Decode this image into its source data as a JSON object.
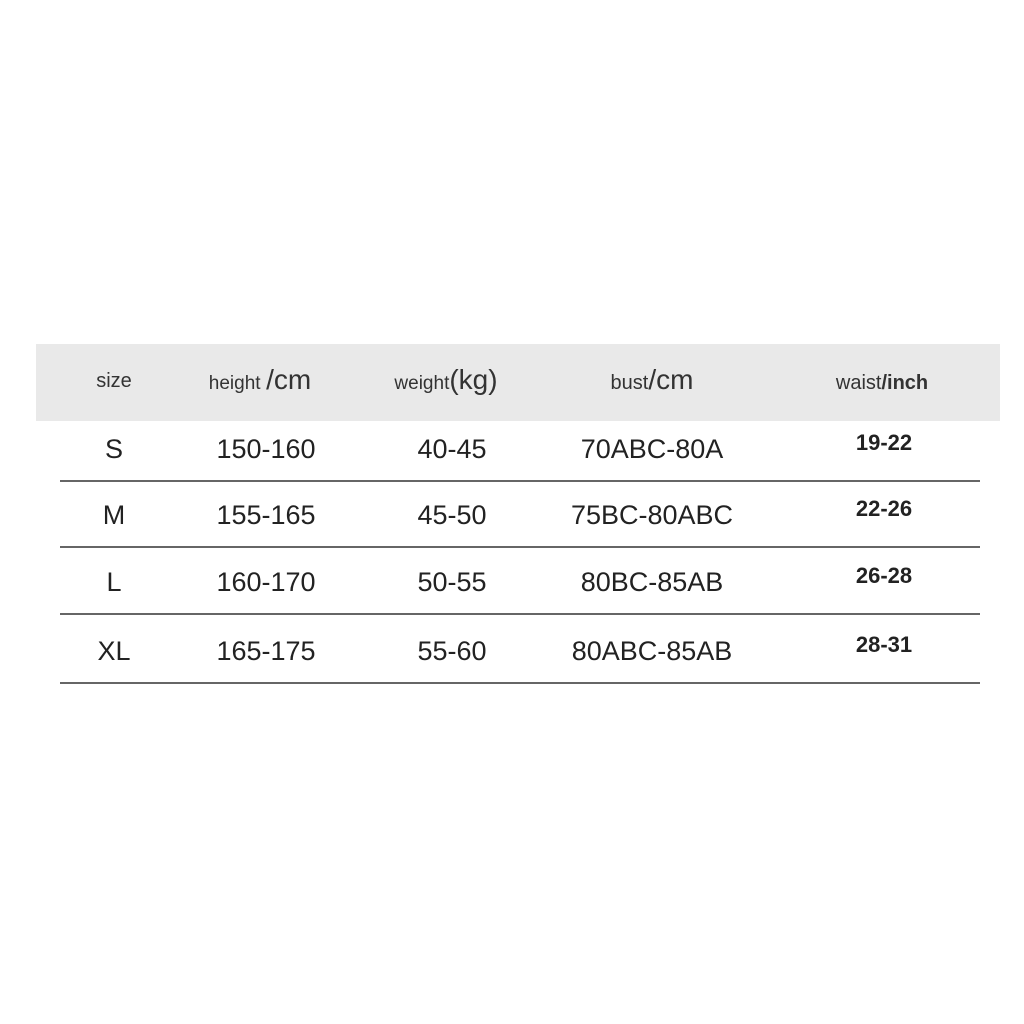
{
  "table": {
    "headers": {
      "size": "size",
      "height": {
        "label": "height",
        "unit": "/cm"
      },
      "weight": {
        "label": "weight",
        "unit": "(kg)"
      },
      "bust": {
        "label": "bust",
        "unit": "/cm"
      },
      "waist": {
        "label": "waist",
        "unit": "/inch"
      }
    },
    "rows": [
      {
        "size": "S",
        "height": "150-160",
        "weight": "40-45",
        "bust": "70ABC-80A",
        "waist": "19-22"
      },
      {
        "size": "M",
        "height": "155-165",
        "weight": "45-50",
        "bust": "75BC-80ABC",
        "waist": "22-26"
      },
      {
        "size": "L",
        "height": "160-170",
        "weight": "50-55",
        "bust": "80BC-85AB",
        "waist": "26-28"
      },
      {
        "size": "XL",
        "height": "165-175",
        "weight": "55-60",
        "bust": "80ABC-85AB",
        "waist": "28-31"
      }
    ]
  }
}
